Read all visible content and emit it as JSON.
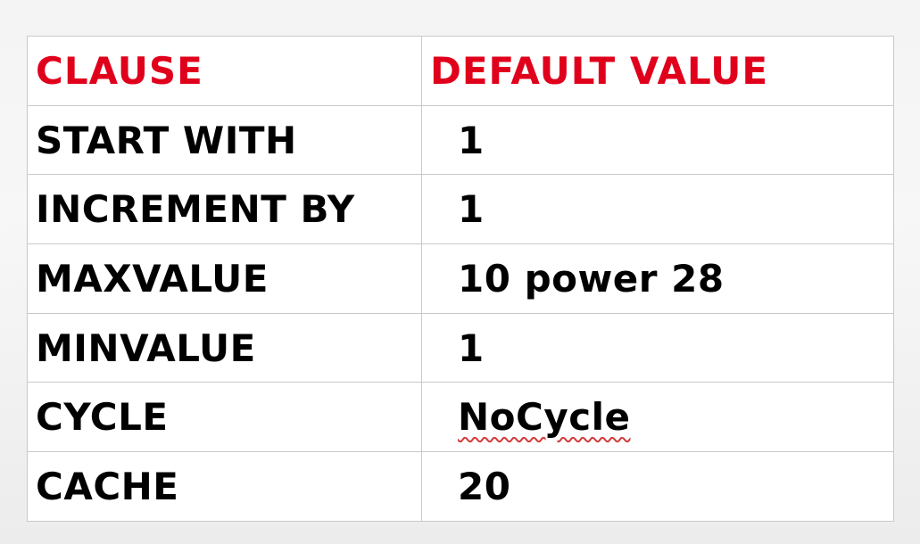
{
  "table": {
    "headers": {
      "clause": "CLAUSE",
      "default_value": "DEFAULT VALUE"
    },
    "rows": [
      {
        "clause": "START WITH",
        "default_value": "1"
      },
      {
        "clause": "INCREMENT BY",
        "default_value": "1"
      },
      {
        "clause": "MAXVALUE",
        "default_value": "10 power 28"
      },
      {
        "clause": "MINVALUE",
        "default_value": "1"
      },
      {
        "clause": "CYCLE",
        "default_value": "NoCycle"
      },
      {
        "clause": "CACHE",
        "default_value": "20"
      }
    ]
  },
  "colors": {
    "header_text": "#e0001b",
    "body_text": "#000000",
    "grid": "#c9c9c9",
    "spellcheck_underline": "#d23a3a"
  }
}
